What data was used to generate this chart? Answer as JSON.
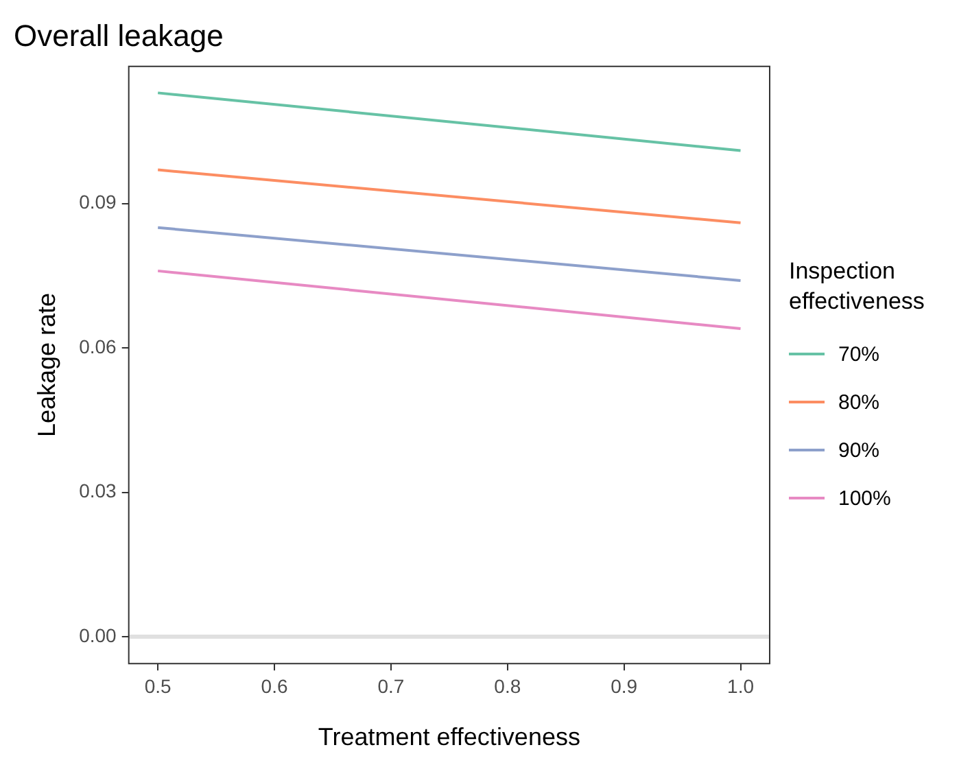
{
  "chart_data": {
    "type": "line",
    "title": "Overall leakage",
    "xlabel": "Treatment effectiveness",
    "ylabel": "Leakage rate",
    "legend_title": "Inspection effectiveness",
    "legend": "right",
    "grid": false,
    "marker": "none",
    "line_style": "solid",
    "x": [
      0.5,
      1.0
    ],
    "xlim": [
      0.475,
      1.025
    ],
    "xticks": [
      {
        "value": 0.5,
        "label": "0.5"
      },
      {
        "value": 0.6,
        "label": "0.6"
      },
      {
        "value": 0.7,
        "label": "0.7"
      },
      {
        "value": 0.8,
        "label": "0.8"
      },
      {
        "value": 0.9,
        "label": "0.9"
      },
      {
        "value": 1.0,
        "label": "1.0"
      }
    ],
    "ylim": [
      -0.0056,
      0.1185
    ],
    "yticks": [
      {
        "value": 0,
        "label": "0.00"
      },
      {
        "value": 0.03,
        "label": "0.03"
      },
      {
        "value": 0.06,
        "label": "0.06"
      },
      {
        "value": 0.09,
        "label": "0.09"
      }
    ],
    "ref_lines": [
      {
        "axis": "y",
        "value": 0,
        "color": "#e0e0e0"
      }
    ],
    "series": [
      {
        "name": "70%",
        "color": "#66c2a5",
        "values": [
          0.113,
          0.101
        ]
      },
      {
        "name": "80%",
        "color": "#fc8d62",
        "values": [
          0.097,
          0.086
        ]
      },
      {
        "name": "90%",
        "color": "#8da0cb",
        "values": [
          0.085,
          0.074
        ]
      },
      {
        "name": "100%",
        "color": "#e78ac3",
        "values": [
          0.076,
          0.064
        ]
      }
    ]
  }
}
